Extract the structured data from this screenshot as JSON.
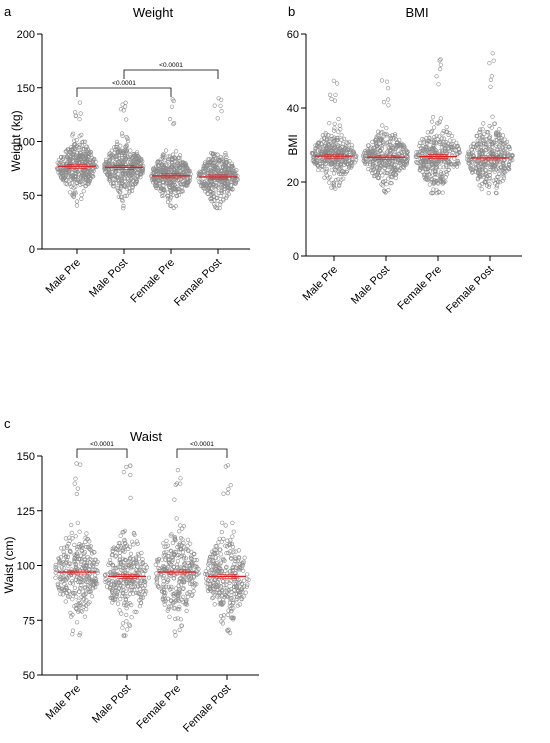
{
  "colors": {
    "points": "#8c8c8c",
    "mean": "#e31a1c",
    "axis": "#000000"
  },
  "chart_data": [
    {
      "type": "scatter",
      "panel_label": "a",
      "title": "Weight",
      "xlabel": "",
      "ylabel": "Weight (kg)",
      "ylim": [
        0,
        200
      ],
      "yticks": [
        "0",
        "50",
        "100",
        "150",
        "200"
      ],
      "categories": [
        "Male Pre",
        "Male Post",
        "Female Pre",
        "Female Post"
      ],
      "series": [
        {
          "mean": 77,
          "min": 40,
          "max": 140,
          "sd": 14
        },
        {
          "mean": 76,
          "min": 38,
          "max": 143,
          "sd": 14
        },
        {
          "mean": 68,
          "min": 38,
          "max": 140,
          "sd": 13
        },
        {
          "mean": 67,
          "min": 38,
          "max": 142,
          "sd": 13
        }
      ],
      "comparisons": [
        {
          "from": 0,
          "to": 2,
          "label": "<0.0001"
        },
        {
          "from": 1,
          "to": 3,
          "label": "<0.0001"
        }
      ]
    },
    {
      "type": "scatter",
      "panel_label": "b",
      "title": "BMI",
      "xlabel": "",
      "ylabel": "BMI",
      "ylim": [
        0,
        60
      ],
      "yticks": [
        "0",
        "20",
        "40",
        "60"
      ],
      "categories": [
        "Male Pre",
        "Male Post",
        "Female Pre",
        "Female Post"
      ],
      "series": [
        {
          "mean": 27,
          "min": 18,
          "max": 48,
          "sd": 4
        },
        {
          "mean": 26.7,
          "min": 17,
          "max": 48,
          "sd": 4
        },
        {
          "mean": 26.9,
          "min": 17,
          "max": 54,
          "sd": 5
        },
        {
          "mean": 26.5,
          "min": 17,
          "max": 56,
          "sd": 5
        }
      ],
      "comparisons": []
    },
    {
      "type": "scatter",
      "panel_label": "c",
      "title": "Waist",
      "xlabel": "",
      "ylabel": "Waist (cm)",
      "ylim": [
        50,
        150
      ],
      "yticks": [
        "50",
        "75",
        "100",
        "125",
        "150"
      ],
      "categories": [
        "Male Pre",
        "Male Post",
        "Female Pre",
        "Female Post"
      ],
      "series": [
        {
          "mean": 97,
          "min": 68,
          "max": 147,
          "sd": 12
        },
        {
          "mean": 95,
          "min": 68,
          "max": 146,
          "sd": 12
        },
        {
          "mean": 97,
          "min": 68,
          "max": 147,
          "sd": 12
        },
        {
          "mean": 95,
          "min": 68,
          "max": 146,
          "sd": 12
        }
      ],
      "comparisons": [
        {
          "from": 0,
          "to": 1,
          "label": "<0.0001"
        },
        {
          "from": 2,
          "to": 3,
          "label": "<0.0001"
        }
      ]
    }
  ]
}
